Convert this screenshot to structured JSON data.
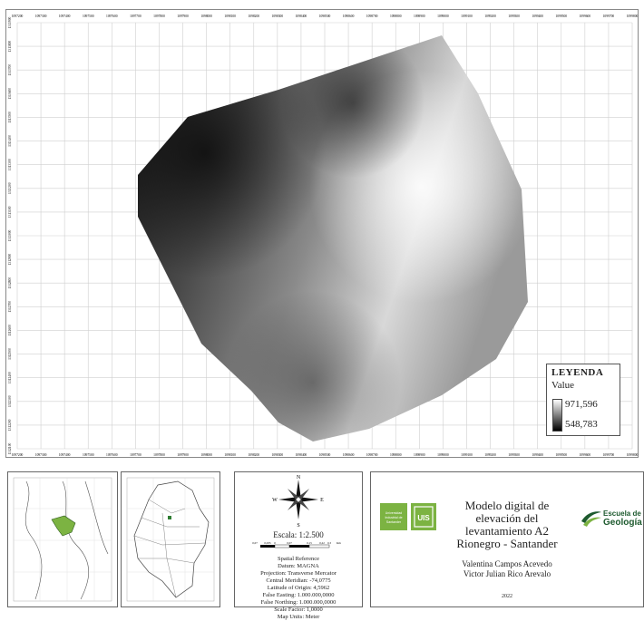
{
  "map": {
    "x_ticks": [
      "1097200",
      "1097300",
      "1097400",
      "1097500",
      "1097600",
      "1097700",
      "1097800",
      "1097900",
      "1098000",
      "1098100",
      "1098200",
      "1098300",
      "1098400",
      "1098500",
      "1098600",
      "1098700",
      "1098800",
      "1098900",
      "1099000",
      "1099100",
      "1099200",
      "1099300",
      "1099400",
      "1099500",
      "1099600",
      "1099700",
      "1099800"
    ],
    "y_ticks": [
      "1313900",
      "1313800",
      "1313700",
      "1313600",
      "1313500",
      "1313400",
      "1313300",
      "1313200",
      "1313100",
      "1313000",
      "1312900",
      "1312800",
      "1312700",
      "1312600",
      "1312500",
      "1312400",
      "1312300",
      "1312200",
      "1312100"
    ]
  },
  "legend": {
    "title": "LEYENDA",
    "subtitle": "Value",
    "max": "971,596",
    "min": "548,783",
    "ramp_top": "#ffffff",
    "ramp_bottom": "#000000"
  },
  "scale": {
    "north_label_n": "N",
    "north_label_s": "S",
    "north_label_e": "E",
    "north_label_w": "W",
    "scale_text": "Escala: 1:2.500",
    "bar_ticks": [
      "0,07",
      "0,035",
      "0",
      "0,07",
      "0,15",
      "0,22",
      "0,3"
    ],
    "bar_unit": "Km"
  },
  "spatial_ref": {
    "lines": [
      "Spatial Reference",
      "Datum: MAGNA",
      "Projection: Transverse Mercator",
      "Central Meridian: -74,0775",
      "Latitude of Origin: 4,5962",
      "False Easting: 1.000.000,0000",
      "False Northing: 1.000.000,0000",
      "Scale Factor: 1,0000",
      "Map Units: Meter"
    ]
  },
  "title": {
    "main_line1": "Modelo digital de",
    "main_line2": "elevación del",
    "main_line3": "levantamiento A2",
    "main_line4": "Rionegro - Santander",
    "author1": "Valentina Campos Acevedo",
    "author2": "Victor Julian Rico Arevalo",
    "year": "2022"
  },
  "logos": {
    "uis_line1": "Universidad",
    "uis_line2": "Industrial de",
    "uis_line3": "Santander",
    "uis_mark": "UIS",
    "geo_line1": "Escuela de",
    "geo_line2": "Geología",
    "uis_color": "#7cb342",
    "geo_color": "#1d5a2e"
  }
}
